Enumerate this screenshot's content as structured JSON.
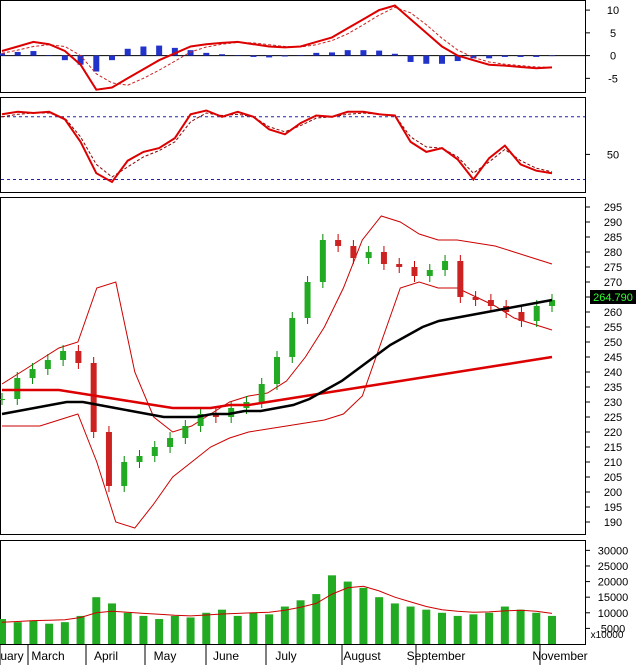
{
  "price_tag": "264.790",
  "chart_data": [
    {
      "type": "line",
      "panel": "macd",
      "yticks": [
        10,
        5,
        0,
        -5
      ],
      "ylim": [
        -8,
        12
      ],
      "series": [
        {
          "values": [
            1,
            2,
            3,
            2.5,
            1,
            -2,
            -7.5,
            -7,
            -5,
            -3,
            -1,
            0.5,
            2,
            2.5,
            2.8,
            3,
            2.5,
            2,
            1.8,
            2,
            3,
            4,
            6,
            8,
            10,
            11,
            8,
            5,
            2,
            0,
            -1,
            -2,
            -2.2,
            -2.5,
            -2.8,
            -2.6
          ]
        },
        {
          "values": [
            0.5,
            1.2,
            2,
            2.4,
            2,
            0,
            -4,
            -6,
            -6.5,
            -5,
            -3.2,
            -1.2,
            0.8,
            1.9,
            2.5,
            2.9,
            2.8,
            2.4,
            2,
            1.9,
            2.4,
            3.3,
            4.8,
            6.8,
            8.9,
            10.6,
            9.4,
            6.8,
            3.8,
            1.2,
            -0.4,
            -1.4,
            -1.9,
            -2.2,
            -2.5,
            -2.6
          ]
        }
      ],
      "histogram": [
        0.5,
        0.8,
        1,
        0.1,
        -1,
        -2,
        -3.5,
        -1,
        1.5,
        2,
        2.2,
        1.7,
        1.2,
        0.6,
        0.3,
        0.1,
        -0.3,
        -0.4,
        -0.2,
        0.1,
        0.6,
        0.7,
        1.2,
        1.2,
        1.1,
        0.4,
        -1.4,
        -1.8,
        -1.8,
        -1.2,
        -0.6,
        -0.6,
        -0.3,
        -0.3,
        -0.3,
        0
      ]
    },
    {
      "type": "line",
      "panel": "rsi",
      "yticks": [
        50
      ],
      "ylim": [
        20,
        95
      ],
      "reference_lines": [
        80,
        30
      ],
      "series": [
        {
          "values": [
            82,
            84,
            83,
            84,
            78,
            60,
            35,
            28,
            45,
            52,
            55,
            63,
            82,
            85,
            80,
            84,
            80,
            70,
            66,
            75,
            81,
            80,
            84,
            84,
            82,
            81,
            60,
            52,
            55,
            46,
            30,
            47,
            57,
            42,
            37,
            35
          ]
        },
        {
          "values": [
            80,
            82,
            83,
            83,
            79,
            64,
            42,
            32,
            40,
            48,
            53,
            60,
            76,
            83,
            81,
            82,
            80,
            72,
            68,
            73,
            79,
            80,
            82,
            83,
            82,
            81,
            64,
            56,
            55,
            48,
            35,
            44,
            54,
            45,
            39,
            36
          ]
        }
      ]
    },
    {
      "type": "candlestick",
      "panel": "price",
      "yticks": [
        295,
        290,
        285,
        280,
        275,
        270,
        265,
        260,
        255,
        250,
        245,
        240,
        235,
        230,
        225,
        220,
        215,
        210,
        205,
        200,
        195,
        190
      ],
      "ylim": [
        186,
        298
      ],
      "x_labels": [
        "uary",
        "March",
        "April",
        "May",
        "June",
        "July",
        "August",
        "September",
        "November"
      ],
      "series": [
        {
          "values": [
            231,
            238,
            241,
            244,
            247,
            243,
            220,
            202,
            210,
            212,
            215,
            218,
            222,
            226,
            225,
            228,
            230,
            236,
            245,
            258,
            270,
            284,
            282,
            278,
            280,
            276,
            275,
            272,
            274,
            277,
            265,
            264,
            262,
            260,
            257,
            262,
            264
          ]
        },
        {
          "values": [
            226,
            227,
            228,
            229,
            230,
            230,
            229,
            228,
            227,
            226,
            225,
            225,
            225,
            226,
            226,
            227,
            227,
            228,
            229,
            231,
            234,
            237,
            241,
            245,
            249,
            252,
            255,
            257,
            258,
            259,
            260,
            261,
            262,
            263,
            264
          ]
        },
        {
          "values": [
            234,
            234,
            234,
            234,
            233,
            232,
            231,
            230,
            229,
            228,
            228,
            228,
            229,
            229,
            230,
            231,
            232,
            233,
            234,
            235,
            236,
            237,
            238,
            239,
            240,
            241,
            242,
            243,
            244,
            245
          ]
        },
        {
          "values": [
            236,
            240,
            244,
            248,
            250,
            268,
            270,
            240,
            225,
            220,
            222,
            226,
            230,
            232,
            233,
            237,
            245,
            255,
            268,
            284,
            292,
            290,
            286,
            284,
            284,
            283,
            282,
            280,
            278,
            276
          ]
        },
        {
          "values": [
            222,
            222,
            222,
            224,
            226,
            210,
            190,
            188,
            196,
            205,
            210,
            215,
            218,
            220,
            221,
            222,
            223,
            224,
            226,
            232,
            250,
            268,
            270,
            268,
            268,
            265,
            262,
            258,
            256,
            254
          ]
        }
      ]
    },
    {
      "type": "bar",
      "panel": "volume",
      "yticks": [
        30000,
        25000,
        20000,
        15000,
        10000,
        5000
      ],
      "ylim": [
        0,
        33000
      ],
      "unit_label": "x10000",
      "values": [
        8000,
        7000,
        7500,
        6500,
        7000,
        9000,
        15000,
        13000,
        10000,
        9000,
        8000,
        9000,
        8500,
        10000,
        11000,
        9000,
        10000,
        9500,
        12000,
        14000,
        16000,
        22000,
        20000,
        18000,
        15000,
        13000,
        12000,
        11000,
        10000,
        9000,
        9500,
        10000,
        12000,
        11000,
        10000,
        9000
      ],
      "series": [
        {
          "values": [
            7000,
            7200,
            7500,
            7600,
            7800,
            8500,
            10000,
            10500,
            10200,
            9800,
            9500,
            9200,
            9000,
            9300,
            9600,
            9800,
            10000,
            10200,
            10800,
            11800,
            13000,
            16000,
            18000,
            18500,
            17000,
            15000,
            13500,
            12000,
            11000,
            10500,
            10200,
            10300,
            10600,
            10800,
            10500,
            9800
          ]
        }
      ]
    }
  ]
}
